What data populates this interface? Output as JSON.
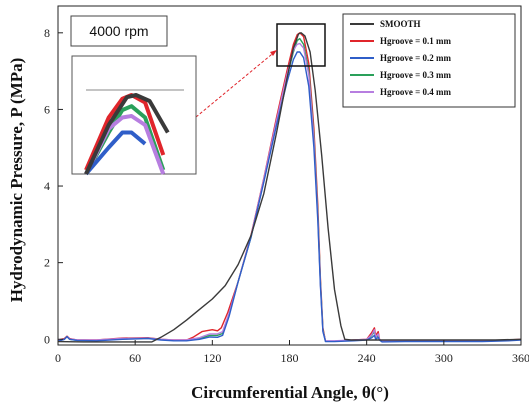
{
  "chart_data": {
    "type": "line",
    "xlabel": "Circumferential Angle, θ(°)",
    "ylabel": "Hydrodynamic Pressure, P (MPa)",
    "xlim": [
      0,
      360
    ],
    "ylim": [
      -0.15,
      8.7
    ],
    "xticks": [
      "0",
      "60",
      "120",
      "180",
      "240",
      "300",
      "360"
    ],
    "xtick_values": [
      0,
      60,
      120,
      180,
      240,
      300,
      360
    ],
    "yticks": [
      "0",
      "2",
      "4",
      "6",
      "8"
    ],
    "ytick_values": [
      0,
      2,
      4,
      6,
      8
    ],
    "grid": false,
    "legend_position": "top-right",
    "annotation": "4000 rpm",
    "series": [
      {
        "name": "SMOOTH",
        "color": "#3a3a3a",
        "points": [
          [
            0,
            -0.06
          ],
          [
            20,
            -0.07
          ],
          [
            40,
            -0.07
          ],
          [
            60,
            -0.07
          ],
          [
            73,
            -0.07
          ],
          [
            80,
            0.05
          ],
          [
            90,
            0.25
          ],
          [
            100,
            0.5
          ],
          [
            110,
            0.78
          ],
          [
            120,
            1.05
          ],
          [
            130,
            1.4
          ],
          [
            140,
            1.95
          ],
          [
            150,
            2.7
          ],
          [
            160,
            3.8
          ],
          [
            170,
            5.4
          ],
          [
            178,
            6.8
          ],
          [
            183,
            7.6
          ],
          [
            187,
            7.97
          ],
          [
            189,
            8.0
          ],
          [
            192,
            7.92
          ],
          [
            196,
            7.5
          ],
          [
            200,
            6.5
          ],
          [
            205,
            4.8
          ],
          [
            210,
            2.9
          ],
          [
            215,
            1.3
          ],
          [
            220,
            0.35
          ],
          [
            223,
            0.0
          ],
          [
            228,
            -0.02
          ],
          [
            240,
            -0.02
          ],
          [
            250,
            -0.02
          ],
          [
            260,
            -0.02
          ],
          [
            300,
            -0.02
          ],
          [
            340,
            -0.02
          ],
          [
            360,
            0.0
          ]
        ]
      },
      {
        "name": "Hgroove = 0.1 mm",
        "color": "#e0252b",
        "points": [
          [
            0,
            -0.02
          ],
          [
            5,
            0.02
          ],
          [
            7,
            0.08
          ],
          [
            9,
            0.02
          ],
          [
            15,
            -0.02
          ],
          [
            30,
            -0.02
          ],
          [
            50,
            0.03
          ],
          [
            70,
            0.04
          ],
          [
            80,
            0.0
          ],
          [
            90,
            -0.02
          ],
          [
            100,
            -0.02
          ],
          [
            105,
            0.05
          ],
          [
            112,
            0.2
          ],
          [
            120,
            0.25
          ],
          [
            124,
            0.22
          ],
          [
            127,
            0.3
          ],
          [
            132,
            0.7
          ],
          [
            140,
            1.5
          ],
          [
            150,
            2.7
          ],
          [
            160,
            4.2
          ],
          [
            170,
            5.8
          ],
          [
            178,
            7.0
          ],
          [
            183,
            7.7
          ],
          [
            186,
            7.95
          ],
          [
            188,
            8.0
          ],
          [
            191,
            7.9
          ],
          [
            195,
            7.2
          ],
          [
            199,
            5.5
          ],
          [
            202,
            3.5
          ],
          [
            204,
            1.6
          ],
          [
            206,
            0.3
          ],
          [
            208,
            -0.05
          ],
          [
            215,
            -0.05
          ],
          [
            230,
            -0.02
          ],
          [
            240,
            0.0
          ],
          [
            244,
            0.18
          ],
          [
            246,
            0.3
          ],
          [
            247,
            0.1
          ],
          [
            249,
            0.2
          ],
          [
            250,
            0.0
          ],
          [
            252,
            -0.05
          ],
          [
            270,
            -0.04
          ],
          [
            300,
            -0.04
          ],
          [
            330,
            -0.04
          ],
          [
            350,
            -0.02
          ],
          [
            360,
            0.0
          ]
        ]
      },
      {
        "name": "Hgroove = 0.2 mm",
        "color": "#2f5ec8",
        "points": [
          [
            0,
            -0.05
          ],
          [
            5,
            0.0
          ],
          [
            7,
            0.07
          ],
          [
            9,
            0.0
          ],
          [
            15,
            -0.03
          ],
          [
            30,
            -0.04
          ],
          [
            50,
            0.0
          ],
          [
            70,
            0.02
          ],
          [
            80,
            -0.02
          ],
          [
            90,
            -0.04
          ],
          [
            100,
            -0.04
          ],
          [
            110,
            0.0
          ],
          [
            118,
            0.06
          ],
          [
            124,
            0.05
          ],
          [
            128,
            0.1
          ],
          [
            133,
            0.6
          ],
          [
            140,
            1.5
          ],
          [
            150,
            2.65
          ],
          [
            160,
            4.1
          ],
          [
            170,
            5.6
          ],
          [
            178,
            6.7
          ],
          [
            183,
            7.3
          ],
          [
            186,
            7.5
          ],
          [
            188,
            7.5
          ],
          [
            191,
            7.35
          ],
          [
            195,
            6.6
          ],
          [
            199,
            5.0
          ],
          [
            202,
            3.1
          ],
          [
            204,
            1.4
          ],
          [
            206,
            0.2
          ],
          [
            208,
            -0.06
          ],
          [
            215,
            -0.06
          ],
          [
            230,
            -0.04
          ],
          [
            240,
            -0.02
          ],
          [
            244,
            0.04
          ],
          [
            246,
            0.1
          ],
          [
            247,
            0.0
          ],
          [
            249,
            0.05
          ],
          [
            250,
            -0.02
          ],
          [
            252,
            -0.07
          ],
          [
            270,
            -0.06
          ],
          [
            300,
            -0.06
          ],
          [
            330,
            -0.06
          ],
          [
            350,
            -0.04
          ],
          [
            360,
            -0.02
          ]
        ]
      },
      {
        "name": "Hgroove = 0.3 mm",
        "color": "#2aa05a",
        "points": [
          [
            0,
            -0.04
          ],
          [
            5,
            0.0
          ],
          [
            7,
            0.07
          ],
          [
            9,
            0.0
          ],
          [
            15,
            -0.03
          ],
          [
            30,
            -0.03
          ],
          [
            50,
            0.01
          ],
          [
            70,
            0.03
          ],
          [
            80,
            -0.01
          ],
          [
            90,
            -0.03
          ],
          [
            100,
            -0.03
          ],
          [
            110,
            0.02
          ],
          [
            118,
            0.1
          ],
          [
            124,
            0.1
          ],
          [
            128,
            0.15
          ],
          [
            133,
            0.65
          ],
          [
            140,
            1.5
          ],
          [
            150,
            2.65
          ],
          [
            160,
            4.15
          ],
          [
            170,
            5.7
          ],
          [
            178,
            6.85
          ],
          [
            183,
            7.5
          ],
          [
            186,
            7.8
          ],
          [
            188,
            7.85
          ],
          [
            191,
            7.7
          ],
          [
            195,
            7.0
          ],
          [
            199,
            5.3
          ],
          [
            202,
            3.3
          ],
          [
            204,
            1.5
          ],
          [
            206,
            0.25
          ],
          [
            208,
            -0.05
          ],
          [
            215,
            -0.05
          ],
          [
            230,
            -0.03
          ],
          [
            240,
            -0.01
          ],
          [
            244,
            0.1
          ],
          [
            246,
            0.2
          ],
          [
            247,
            0.05
          ],
          [
            249,
            0.1
          ],
          [
            250,
            -0.01
          ],
          [
            252,
            -0.06
          ],
          [
            270,
            -0.05
          ],
          [
            300,
            -0.05
          ],
          [
            330,
            -0.05
          ],
          [
            350,
            -0.03
          ],
          [
            360,
            -0.01
          ]
        ]
      },
      {
        "name": "Hgroove = 0.4 mm",
        "color": "#b77ee0",
        "points": [
          [
            0,
            -0.03
          ],
          [
            5,
            0.0
          ],
          [
            7,
            0.07
          ],
          [
            9,
            0.01
          ],
          [
            15,
            -0.02
          ],
          [
            30,
            -0.02
          ],
          [
            50,
            0.02
          ],
          [
            70,
            0.03
          ],
          [
            80,
            0.0
          ],
          [
            90,
            -0.02
          ],
          [
            100,
            -0.02
          ],
          [
            110,
            0.04
          ],
          [
            118,
            0.14
          ],
          [
            124,
            0.14
          ],
          [
            128,
            0.2
          ],
          [
            133,
            0.68
          ],
          [
            140,
            1.5
          ],
          [
            150,
            2.68
          ],
          [
            160,
            4.18
          ],
          [
            170,
            5.72
          ],
          [
            178,
            6.9
          ],
          [
            183,
            7.55
          ],
          [
            186,
            7.7
          ],
          [
            188,
            7.72
          ],
          [
            191,
            7.6
          ],
          [
            195,
            6.9
          ],
          [
            199,
            5.2
          ],
          [
            202,
            3.2
          ],
          [
            204,
            1.45
          ],
          [
            206,
            0.22
          ],
          [
            208,
            -0.04
          ],
          [
            215,
            -0.04
          ],
          [
            230,
            -0.02
          ],
          [
            240,
            0.0
          ],
          [
            244,
            0.12
          ],
          [
            246,
            0.25
          ],
          [
            247,
            0.06
          ],
          [
            249,
            0.14
          ],
          [
            250,
            0.0
          ],
          [
            252,
            -0.05
          ],
          [
            270,
            -0.05
          ],
          [
            300,
            -0.05
          ],
          [
            330,
            -0.05
          ],
          [
            350,
            -0.03
          ],
          [
            360,
            0.0
          ]
        ]
      }
    ]
  }
}
